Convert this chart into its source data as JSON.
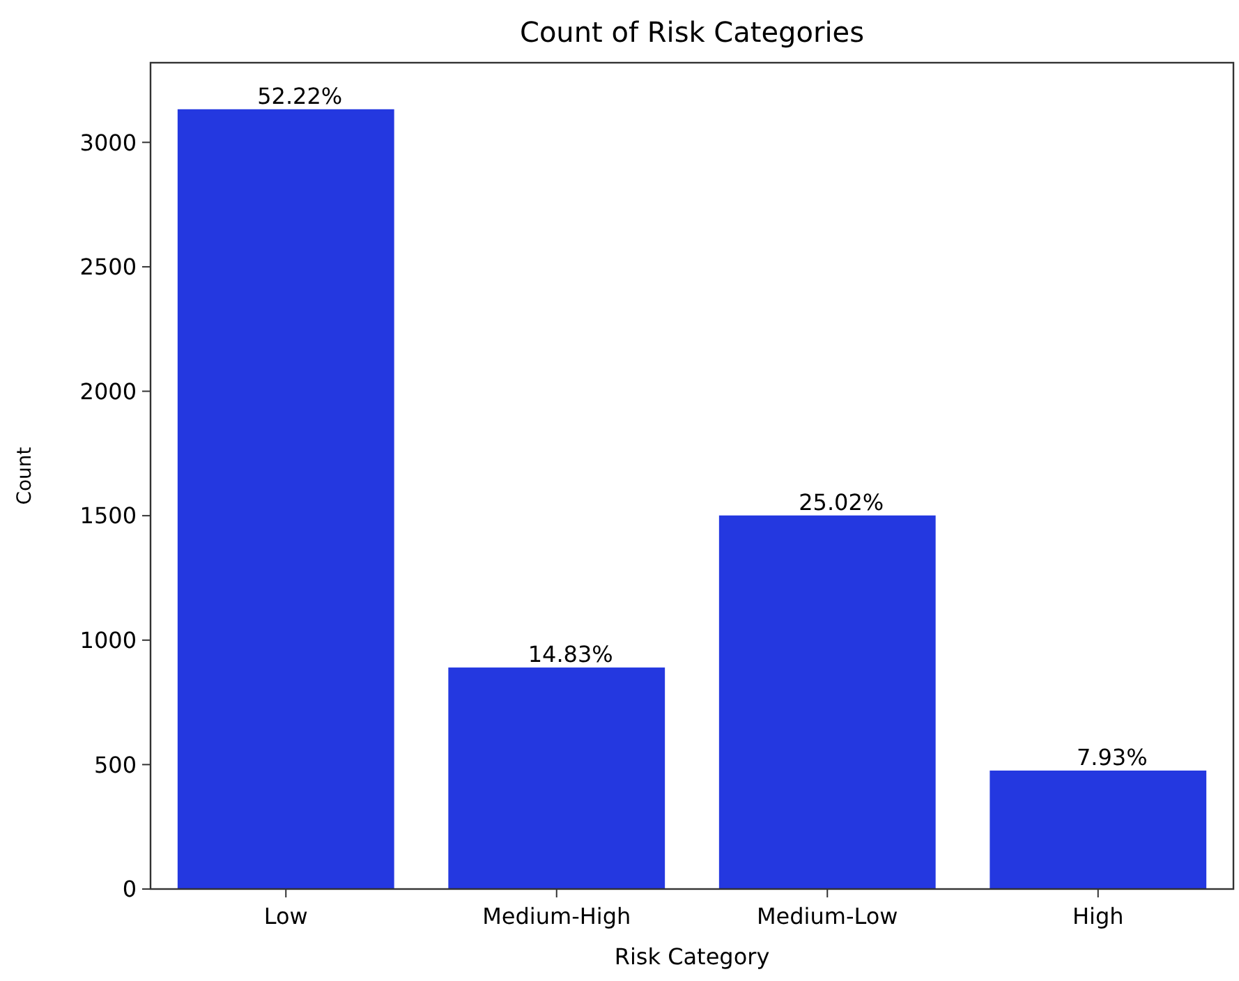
{
  "chart_data": {
    "type": "bar",
    "title": "Count of Risk Categories",
    "xlabel": "Risk Category",
    "ylabel": "Count",
    "categories": [
      "Low",
      "Medium-High",
      "Medium-Low",
      "High"
    ],
    "values": [
      3133,
      890,
      1501,
      476
    ],
    "annotations": [
      {
        "text": "52.22%",
        "x": "Low",
        "y": 3133
      },
      {
        "text": "14.83%",
        "x": "Medium-High",
        "y": 890
      },
      {
        "text": "25.02%",
        "x": "Medium-Low",
        "y": 1501
      },
      {
        "text": "7.93%",
        "x": "High",
        "y": 476
      }
    ],
    "color": "#2438e0",
    "ylim": [
      0,
      3320
    ],
    "yticks": [
      0,
      500,
      1000,
      1500,
      2000,
      2500,
      3000
    ],
    "grid": false
  }
}
